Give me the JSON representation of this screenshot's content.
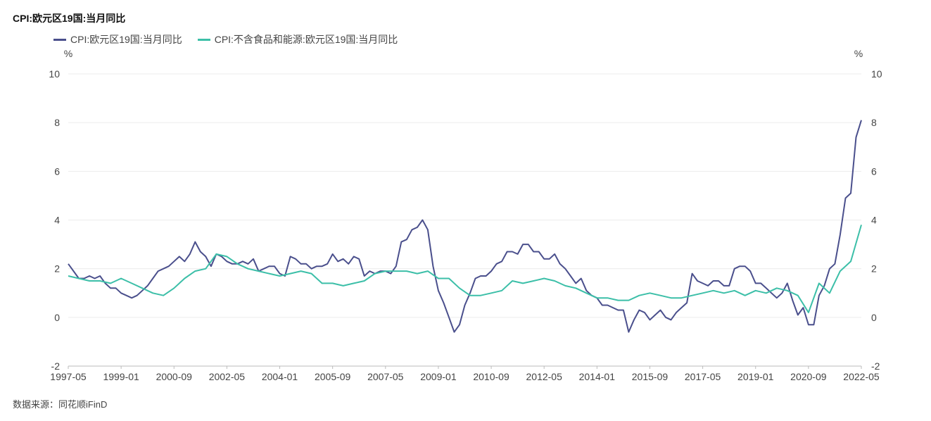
{
  "chart_data": {
    "type": "line",
    "title": "CPI:欧元区19国:当月同比",
    "y_unit_left": "%",
    "y_unit_right": "%",
    "ylim": [
      -2,
      10
    ],
    "y_ticks": [
      -2,
      0,
      2,
      4,
      6,
      8,
      10
    ],
    "x_tick_labels": [
      "1997-05",
      "1999-01",
      "2000-09",
      "2002-05",
      "2004-01",
      "2005-09",
      "2007-05",
      "2009-01",
      "2010-09",
      "2012-05",
      "2014-01",
      "2015-09",
      "2017-05",
      "2019-01",
      "2020-09",
      "2022-05"
    ],
    "x_start": "1997-05",
    "x_end": "2022-05",
    "series": [
      {
        "name": "CPI:欧元区19国:当月同比",
        "color": "#4a4f8c",
        "points": [
          [
            "1997-05",
            2.2
          ],
          [
            "1997-07",
            1.9
          ],
          [
            "1997-09",
            1.6
          ],
          [
            "1997-11",
            1.6
          ],
          [
            "1998-01",
            1.7
          ],
          [
            "1998-03",
            1.6
          ],
          [
            "1998-05",
            1.7
          ],
          [
            "1998-07",
            1.4
          ],
          [
            "1998-09",
            1.2
          ],
          [
            "1998-11",
            1.2
          ],
          [
            "1999-01",
            1.0
          ],
          [
            "1999-03",
            0.9
          ],
          [
            "1999-05",
            0.8
          ],
          [
            "1999-07",
            0.9
          ],
          [
            "1999-09",
            1.1
          ],
          [
            "1999-11",
            1.3
          ],
          [
            "2000-01",
            1.6
          ],
          [
            "2000-03",
            1.9
          ],
          [
            "2000-05",
            2.0
          ],
          [
            "2000-07",
            2.1
          ],
          [
            "2000-09",
            2.3
          ],
          [
            "2000-11",
            2.5
          ],
          [
            "2001-01",
            2.3
          ],
          [
            "2001-03",
            2.6
          ],
          [
            "2001-05",
            3.1
          ],
          [
            "2001-07",
            2.7
          ],
          [
            "2001-09",
            2.5
          ],
          [
            "2001-11",
            2.1
          ],
          [
            "2002-01",
            2.6
          ],
          [
            "2002-03",
            2.5
          ],
          [
            "2002-05",
            2.3
          ],
          [
            "2002-07",
            2.2
          ],
          [
            "2002-09",
            2.2
          ],
          [
            "2002-11",
            2.3
          ],
          [
            "2003-01",
            2.2
          ],
          [
            "2003-03",
            2.4
          ],
          [
            "2003-05",
            1.9
          ],
          [
            "2003-07",
            2.0
          ],
          [
            "2003-09",
            2.1
          ],
          [
            "2003-11",
            2.1
          ],
          [
            "2004-01",
            1.8
          ],
          [
            "2004-03",
            1.7
          ],
          [
            "2004-05",
            2.5
          ],
          [
            "2004-07",
            2.4
          ],
          [
            "2004-09",
            2.2
          ],
          [
            "2004-11",
            2.2
          ],
          [
            "2005-01",
            2.0
          ],
          [
            "2005-03",
            2.1
          ],
          [
            "2005-05",
            2.1
          ],
          [
            "2005-07",
            2.2
          ],
          [
            "2005-09",
            2.6
          ],
          [
            "2005-11",
            2.3
          ],
          [
            "2006-01",
            2.4
          ],
          [
            "2006-03",
            2.2
          ],
          [
            "2006-05",
            2.5
          ],
          [
            "2006-07",
            2.4
          ],
          [
            "2006-09",
            1.7
          ],
          [
            "2006-11",
            1.9
          ],
          [
            "2007-01",
            1.8
          ],
          [
            "2007-03",
            1.9
          ],
          [
            "2007-05",
            1.9
          ],
          [
            "2007-07",
            1.8
          ],
          [
            "2007-09",
            2.1
          ],
          [
            "2007-11",
            3.1
          ],
          [
            "2008-01",
            3.2
          ],
          [
            "2008-03",
            3.6
          ],
          [
            "2008-05",
            3.7
          ],
          [
            "2008-07",
            4.0
          ],
          [
            "2008-09",
            3.6
          ],
          [
            "2008-11",
            2.1
          ],
          [
            "2009-01",
            1.1
          ],
          [
            "2009-03",
            0.6
          ],
          [
            "2009-05",
            0.0
          ],
          [
            "2009-07",
            -0.6
          ],
          [
            "2009-09",
            -0.3
          ],
          [
            "2009-11",
            0.5
          ],
          [
            "2010-01",
            1.0
          ],
          [
            "2010-03",
            1.6
          ],
          [
            "2010-05",
            1.7
          ],
          [
            "2010-07",
            1.7
          ],
          [
            "2010-09",
            1.9
          ],
          [
            "2010-11",
            2.2
          ],
          [
            "2011-01",
            2.3
          ],
          [
            "2011-03",
            2.7
          ],
          [
            "2011-05",
            2.7
          ],
          [
            "2011-07",
            2.6
          ],
          [
            "2011-09",
            3.0
          ],
          [
            "2011-11",
            3.0
          ],
          [
            "2012-01",
            2.7
          ],
          [
            "2012-03",
            2.7
          ],
          [
            "2012-05",
            2.4
          ],
          [
            "2012-07",
            2.4
          ],
          [
            "2012-09",
            2.6
          ],
          [
            "2012-11",
            2.2
          ],
          [
            "2013-01",
            2.0
          ],
          [
            "2013-03",
            1.7
          ],
          [
            "2013-05",
            1.4
          ],
          [
            "2013-07",
            1.6
          ],
          [
            "2013-09",
            1.1
          ],
          [
            "2013-11",
            0.9
          ],
          [
            "2014-01",
            0.8
          ],
          [
            "2014-03",
            0.5
          ],
          [
            "2014-05",
            0.5
          ],
          [
            "2014-07",
            0.4
          ],
          [
            "2014-09",
            0.3
          ],
          [
            "2014-11",
            0.3
          ],
          [
            "2015-01",
            -0.6
          ],
          [
            "2015-03",
            -0.1
          ],
          [
            "2015-05",
            0.3
          ],
          [
            "2015-07",
            0.2
          ],
          [
            "2015-09",
            -0.1
          ],
          [
            "2015-11",
            0.1
          ],
          [
            "2016-01",
            0.3
          ],
          [
            "2016-03",
            0.0
          ],
          [
            "2016-05",
            -0.1
          ],
          [
            "2016-07",
            0.2
          ],
          [
            "2016-09",
            0.4
          ],
          [
            "2016-11",
            0.6
          ],
          [
            "2017-01",
            1.8
          ],
          [
            "2017-03",
            1.5
          ],
          [
            "2017-05",
            1.4
          ],
          [
            "2017-07",
            1.3
          ],
          [
            "2017-09",
            1.5
          ],
          [
            "2017-11",
            1.5
          ],
          [
            "2018-01",
            1.3
          ],
          [
            "2018-03",
            1.3
          ],
          [
            "2018-05",
            2.0
          ],
          [
            "2018-07",
            2.1
          ],
          [
            "2018-09",
            2.1
          ],
          [
            "2018-11",
            1.9
          ],
          [
            "2019-01",
            1.4
          ],
          [
            "2019-03",
            1.4
          ],
          [
            "2019-05",
            1.2
          ],
          [
            "2019-07",
            1.0
          ],
          [
            "2019-09",
            0.8
          ],
          [
            "2019-11",
            1.0
          ],
          [
            "2020-01",
            1.4
          ],
          [
            "2020-03",
            0.7
          ],
          [
            "2020-05",
            0.1
          ],
          [
            "2020-07",
            0.4
          ],
          [
            "2020-09",
            -0.3
          ],
          [
            "2020-11",
            -0.3
          ],
          [
            "2021-01",
            0.9
          ],
          [
            "2021-03",
            1.3
          ],
          [
            "2021-05",
            2.0
          ],
          [
            "2021-07",
            2.2
          ],
          [
            "2021-09",
            3.4
          ],
          [
            "2021-11",
            4.9
          ],
          [
            "2022-01",
            5.1
          ],
          [
            "2022-03",
            7.4
          ],
          [
            "2022-05",
            8.1
          ]
        ]
      },
      {
        "name": "CPI:不含食品和能源:欧元区19国:当月同比",
        "color": "#3cbfa8",
        "points": [
          [
            "1997-05",
            1.7
          ],
          [
            "1997-09",
            1.6
          ],
          [
            "1998-01",
            1.5
          ],
          [
            "1998-05",
            1.5
          ],
          [
            "1998-09",
            1.4
          ],
          [
            "1999-01",
            1.6
          ],
          [
            "1999-05",
            1.4
          ],
          [
            "1999-09",
            1.2
          ],
          [
            "2000-01",
            1.0
          ],
          [
            "2000-05",
            0.9
          ],
          [
            "2000-09",
            1.2
          ],
          [
            "2001-01",
            1.6
          ],
          [
            "2001-05",
            1.9
          ],
          [
            "2001-09",
            2.0
          ],
          [
            "2002-01",
            2.6
          ],
          [
            "2002-05",
            2.5
          ],
          [
            "2002-09",
            2.2
          ],
          [
            "2003-01",
            2.0
          ],
          [
            "2003-05",
            1.9
          ],
          [
            "2003-09",
            1.8
          ],
          [
            "2004-01",
            1.7
          ],
          [
            "2004-05",
            1.8
          ],
          [
            "2004-09",
            1.9
          ],
          [
            "2005-01",
            1.8
          ],
          [
            "2005-05",
            1.4
          ],
          [
            "2005-09",
            1.4
          ],
          [
            "2006-01",
            1.3
          ],
          [
            "2006-05",
            1.4
          ],
          [
            "2006-09",
            1.5
          ],
          [
            "2007-01",
            1.8
          ],
          [
            "2007-05",
            1.9
          ],
          [
            "2007-09",
            1.9
          ],
          [
            "2008-01",
            1.9
          ],
          [
            "2008-05",
            1.8
          ],
          [
            "2008-09",
            1.9
          ],
          [
            "2009-01",
            1.6
          ],
          [
            "2009-05",
            1.6
          ],
          [
            "2009-09",
            1.2
          ],
          [
            "2010-01",
            0.9
          ],
          [
            "2010-05",
            0.9
          ],
          [
            "2010-09",
            1.0
          ],
          [
            "2011-01",
            1.1
          ],
          [
            "2011-05",
            1.5
          ],
          [
            "2011-09",
            1.4
          ],
          [
            "2012-01",
            1.5
          ],
          [
            "2012-05",
            1.6
          ],
          [
            "2012-09",
            1.5
          ],
          [
            "2013-01",
            1.3
          ],
          [
            "2013-05",
            1.2
          ],
          [
            "2013-09",
            1.0
          ],
          [
            "2014-01",
            0.8
          ],
          [
            "2014-05",
            0.8
          ],
          [
            "2014-09",
            0.7
          ],
          [
            "2015-01",
            0.7
          ],
          [
            "2015-05",
            0.9
          ],
          [
            "2015-09",
            1.0
          ],
          [
            "2016-01",
            0.9
          ],
          [
            "2016-05",
            0.8
          ],
          [
            "2016-09",
            0.8
          ],
          [
            "2017-01",
            0.9
          ],
          [
            "2017-05",
            1.0
          ],
          [
            "2017-09",
            1.1
          ],
          [
            "2018-01",
            1.0
          ],
          [
            "2018-05",
            1.1
          ],
          [
            "2018-09",
            0.9
          ],
          [
            "2019-01",
            1.1
          ],
          [
            "2019-05",
            1.0
          ],
          [
            "2019-09",
            1.2
          ],
          [
            "2020-01",
            1.1
          ],
          [
            "2020-05",
            0.9
          ],
          [
            "2020-09",
            0.2
          ],
          [
            "2021-01",
            1.4
          ],
          [
            "2021-05",
            1.0
          ],
          [
            "2021-09",
            1.9
          ],
          [
            "2022-01",
            2.3
          ],
          [
            "2022-05",
            3.8
          ]
        ]
      }
    ],
    "source": "数据来源：同花顺iFinD"
  }
}
